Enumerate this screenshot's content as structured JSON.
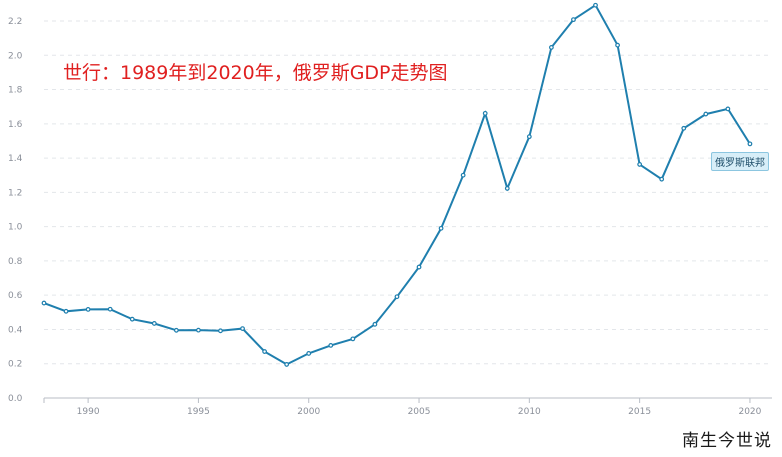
{
  "annotation": "世行：1989年到2020年，俄罗斯GDP走势图",
  "watermark": "南生今世说",
  "chart_data": {
    "type": "line",
    "title": "",
    "xlabel": "",
    "ylabel": "",
    "x": [
      1988,
      1989,
      1990,
      1991,
      1992,
      1993,
      1994,
      1995,
      1996,
      1997,
      1998,
      1999,
      2000,
      2001,
      2002,
      2003,
      2004,
      2005,
      2006,
      2007,
      2008,
      2009,
      2010,
      2011,
      2012,
      2013,
      2014,
      2015,
      2016,
      2017,
      2018,
      2019,
      2020
    ],
    "series": [
      {
        "name": "俄罗斯联邦",
        "color": "#1f7fae",
        "values": [
          0.554,
          0.506,
          0.517,
          0.518,
          0.46,
          0.435,
          0.395,
          0.396,
          0.392,
          0.405,
          0.271,
          0.196,
          0.26,
          0.307,
          0.345,
          0.43,
          0.591,
          0.764,
          0.99,
          1.3,
          1.661,
          1.223,
          1.525,
          2.046,
          2.208,
          2.292,
          2.059,
          1.363,
          1.277,
          1.574,
          1.657,
          1.687,
          1.483
        ]
      }
    ],
    "xlim": [
      1988,
      2021
    ],
    "ylim": [
      0,
      2.3
    ],
    "xticks": [
      "1990",
      "1995",
      "2000",
      "2005",
      "2010",
      "2015",
      "2020"
    ],
    "yticks": [
      "0.0",
      "0.2",
      "0.4",
      "0.6",
      "0.8",
      "1.0",
      "1.2",
      "1.4",
      "1.6",
      "1.8",
      "2.0",
      "2.2"
    ],
    "grid": true,
    "legend": "right"
  }
}
